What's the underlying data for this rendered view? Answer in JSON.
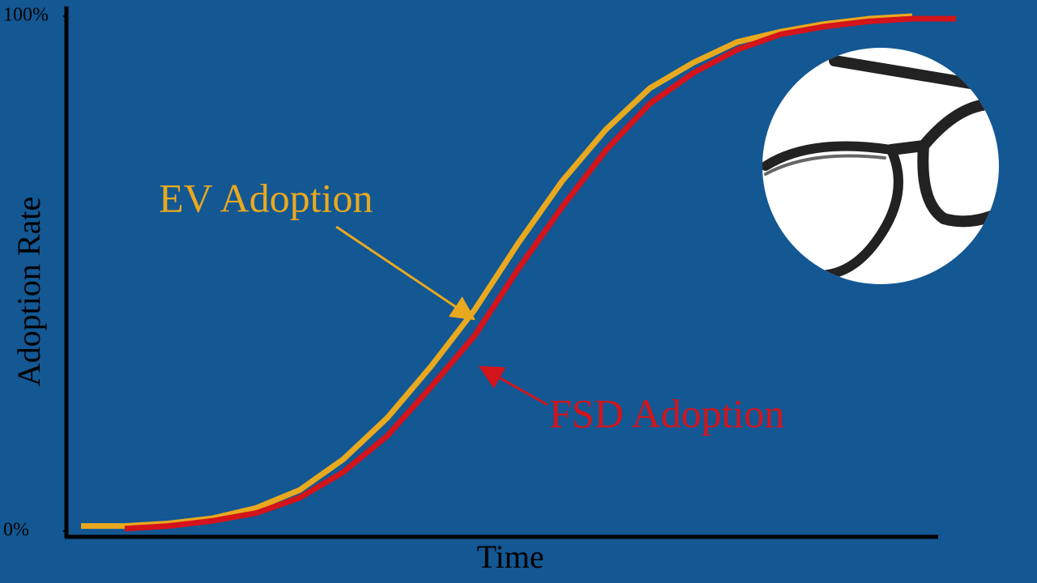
{
  "chart_data": {
    "type": "line",
    "x_label": "Time",
    "y_label": "Adoption Rate",
    "categories": [
      null,
      null,
      null,
      null,
      null,
      null,
      null,
      null,
      null,
      null,
      null,
      null,
      null,
      null,
      null,
      null,
      null,
      null,
      null,
      null,
      null
    ],
    "series": [
      {
        "name": "EV Adoption",
        "color": "#e9a91e",
        "values": [
          1,
          1,
          1.5,
          2.5,
          4.5,
          8,
          14,
          22,
          32,
          43,
          56,
          68,
          78,
          86,
          91,
          95,
          97,
          98.5,
          99.5,
          100,
          null
        ]
      },
      {
        "name": "FSD Adoption",
        "color": "#d3141b",
        "values": [
          null,
          0.5,
          1,
          2,
          3.5,
          6.5,
          11.5,
          18.5,
          28,
          38,
          51,
          63,
          74,
          83,
          89,
          93.5,
          96.5,
          98,
          99,
          99.5,
          99.5
        ]
      }
    ],
    "ylim": [
      0,
      100
    ],
    "yticks": [
      {
        "value": 0,
        "label": "0%"
      },
      {
        "value": 100,
        "label": "100%"
      }
    ]
  }
}
